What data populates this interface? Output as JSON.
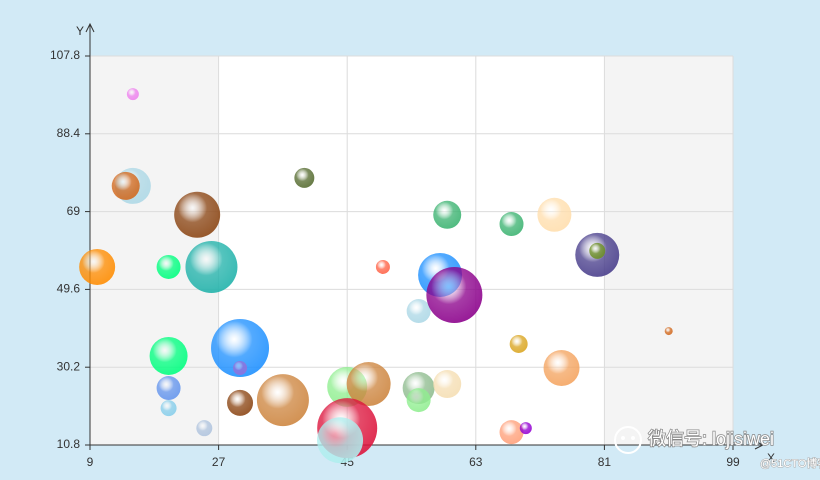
{
  "chart_data": {
    "type": "bubble",
    "y_label": "Y",
    "x_label": "X",
    "annotations": [
      "微信号: lojisiwei",
      "@51CTO博客"
    ],
    "xlim": [
      9,
      99
    ],
    "xticks": [
      9,
      27,
      45,
      63,
      81,
      99
    ],
    "ylim": [
      10.8,
      107.8
    ],
    "yticks": [
      10.8,
      30.2,
      49.6,
      69,
      88.4,
      107.8
    ],
    "grid": true,
    "x": [
      15,
      15,
      14,
      10,
      20,
      24,
      26,
      39,
      20,
      20,
      20,
      25,
      30,
      30,
      30,
      36,
      45,
      48,
      45,
      44,
      50,
      55,
      55,
      55,
      58,
      60,
      59,
      59,
      68,
      74,
      69,
      75,
      68,
      70,
      80,
      80,
      90
    ],
    "values": [
      98.3,
      75.4,
      75.4,
      55.2,
      55.2,
      68.2,
      55.2,
      77.4,
      33,
      25,
      20,
      15,
      35,
      30,
      21.3,
      22,
      25.3,
      26,
      15,
      12,
      55.2,
      44.2,
      25,
      22,
      53.2,
      48.2,
      68.2,
      26,
      65.9,
      68.2,
      36,
      30,
      14,
      15,
      58.2,
      59.2,
      39.2
    ],
    "sizes": [
      6,
      18,
      14,
      18,
      12,
      23,
      26,
      10,
      19,
      12,
      8,
      8,
      29,
      7,
      13,
      26,
      20,
      22,
      30,
      23,
      7,
      12,
      16,
      12,
      22,
      28,
      14,
      14,
      12,
      17,
      9,
      18,
      12,
      6,
      22,
      8,
      4
    ],
    "colors": [
      "#ee82ee",
      "#add8e6",
      "#d2691e",
      "#ff8c00",
      "#00ff7f",
      "#8b4513",
      "#20b2aa",
      "#556b2f",
      "#00ff7f",
      "#6495ed",
      "#87ceeb",
      "#b0c4de",
      "#1e90ff",
      "#9370db",
      "#8b4513",
      "#cd853f",
      "#90ee90",
      "#cd853f",
      "#dc143c",
      "#afeeee",
      "#ff6347",
      "#add8e6",
      "#8fbc8f",
      "#90ee90",
      "#1e90ff",
      "#8b008b",
      "#3cb371",
      "#f5deb3",
      "#3cb371",
      "#ffdead",
      "#daa520",
      "#f4a460",
      "#ffa07a",
      "#9400d3",
      "#483d8b",
      "#6b8e23",
      "#d2691e"
    ]
  }
}
